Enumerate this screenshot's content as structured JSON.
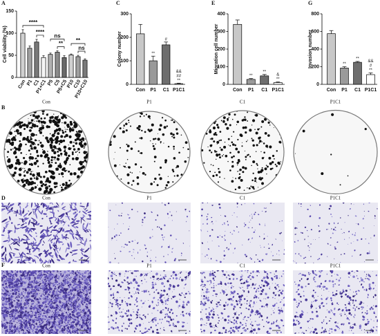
{
  "chart_data": [
    {
      "panel": "A",
      "type": "bar",
      "ylabel": "Cell viability (%)",
      "categories": [
        "Con",
        "P1",
        "C1",
        "P1+C1",
        "P5",
        "C5",
        "P5+C5",
        "P10",
        "C10",
        "P10+C10"
      ],
      "values": [
        100,
        66,
        80,
        45,
        52,
        57,
        45,
        51,
        47,
        39
      ],
      "errors": [
        8,
        5,
        6,
        4,
        3,
        3,
        4,
        2,
        3,
        3
      ],
      "colors": [
        "#d0d0d0",
        "#a0a0a0",
        "#7a7a7a",
        "#f4f4f4",
        "#b0b0b0",
        "#8c8c8c",
        "#6a6a6a",
        "#d0d0d0",
        "#a0a0a0",
        "#7a7a7a"
      ],
      "ylim": [
        0,
        150
      ],
      "yticks": [
        0,
        50,
        100,
        150
      ],
      "comparisons": [
        {
          "between": [
            "C1",
            "P1+C1"
          ],
          "label": "****"
        },
        {
          "between": [
            "Con",
            "P1+C1"
          ],
          "label": "****"
        },
        {
          "between": [
            "C5",
            "P5+C5"
          ],
          "label": "**"
        },
        {
          "between": [
            "P5",
            "P5+C5"
          ],
          "label": "ns"
        },
        {
          "between": [
            "C10",
            "P10+C10"
          ],
          "label": "ns"
        },
        {
          "between": [
            "P10",
            "P10+C10"
          ],
          "label": "**"
        }
      ]
    },
    {
      "panel": "C",
      "type": "bar",
      "ylabel": "Colony number",
      "categories": [
        "Con",
        "P1",
        "C1",
        "P1C1"
      ],
      "values": [
        215,
        100,
        168,
        3
      ],
      "errors": [
        40,
        20,
        12,
        2
      ],
      "colors": [
        "#c8c8c8",
        "#9a9a9a",
        "#6e6e6e",
        "#ffffff"
      ],
      "ylim": [
        0,
        300
      ],
      "yticks": [
        0,
        100,
        200,
        300
      ],
      "bar_annotations": [
        [],
        [
          "**"
        ],
        [
          "#"
        ],
        [
          "&&",
          "##",
          "**"
        ]
      ]
    },
    {
      "panel": "E",
      "type": "bar",
      "ylabel": "Migration cell number",
      "categories": [
        "Con",
        "P1",
        "C1",
        "P1C1"
      ],
      "values": [
        340,
        28,
        48,
        10
      ],
      "errors": [
        25,
        5,
        8,
        4
      ],
      "colors": [
        "#c8c8c8",
        "#9a9a9a",
        "#6e6e6e",
        "#ffffff"
      ],
      "ylim": [
        0,
        400
      ],
      "yticks": [
        0,
        100,
        200,
        300,
        400
      ],
      "bar_annotations": [
        [],
        [
          "**"
        ],
        [
          "**"
        ],
        [
          "&",
          "**"
        ]
      ]
    },
    {
      "panel": "G",
      "type": "bar",
      "ylabel": "Invasion number",
      "categories": [
        "Con",
        "P1",
        "C1",
        "P1C1"
      ],
      "values": [
        575,
        185,
        250,
        110
      ],
      "errors": [
        35,
        15,
        10,
        20
      ],
      "colors": [
        "#c8c8c8",
        "#9a9a9a",
        "#6e6e6e",
        "#ffffff"
      ],
      "ylim": [
        0,
        800
      ],
      "yticks": [
        0,
        200,
        400,
        600,
        800
      ],
      "bar_annotations": [
        [],
        [
          "**"
        ],
        [
          "**"
        ],
        [
          "&&",
          "#",
          "**"
        ]
      ]
    }
  ],
  "image_rows": [
    {
      "panel": "B",
      "labels": [
        "Con",
        "P1",
        "C1",
        "P1C1"
      ]
    },
    {
      "panel": "D",
      "labels": [
        "Con",
        "P1",
        "C1",
        "P1C1"
      ]
    },
    {
      "panel": "F",
      "labels": [
        "Con",
        "P1",
        "C1",
        "P1C1"
      ]
    }
  ]
}
